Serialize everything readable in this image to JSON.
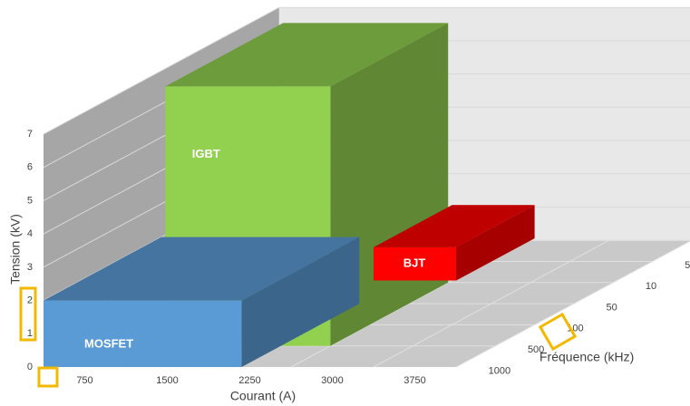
{
  "chart_data": {
    "type": "bar3d",
    "xlabel": "Courant (A)",
    "ylabel": "Tension (kV)",
    "zlabel": "Fréquence (kHz)",
    "xlim": [
      0,
      3750
    ],
    "xticks": [
      750,
      1500,
      2250,
      3000,
      3750
    ],
    "ylim": [
      0,
      7
    ],
    "yticks": [
      0,
      1,
      2,
      3,
      4,
      5,
      6,
      7
    ],
    "zcategories": [
      "1000",
      "500",
      "100",
      "50",
      "10",
      "5"
    ],
    "grid": true,
    "series": [
      {
        "name": "IGBT",
        "color": "#92d050",
        "x": [
          750,
          2250
        ],
        "y": [
          0,
          7.8
        ],
        "z": [
          1,
          4
        ]
      },
      {
        "name": "BJT",
        "color": "#ff0000",
        "x": [
          3000,
          3750
        ],
        "y": [
          2.6,
          3.6
        ],
        "z": [
          0,
          2
        ]
      },
      {
        "name": "MOSFET",
        "color": "#5b9bd5",
        "x": [
          0,
          1800
        ],
        "y": [
          0,
          2
        ],
        "z": [
          0,
          3
        ]
      }
    ]
  }
}
